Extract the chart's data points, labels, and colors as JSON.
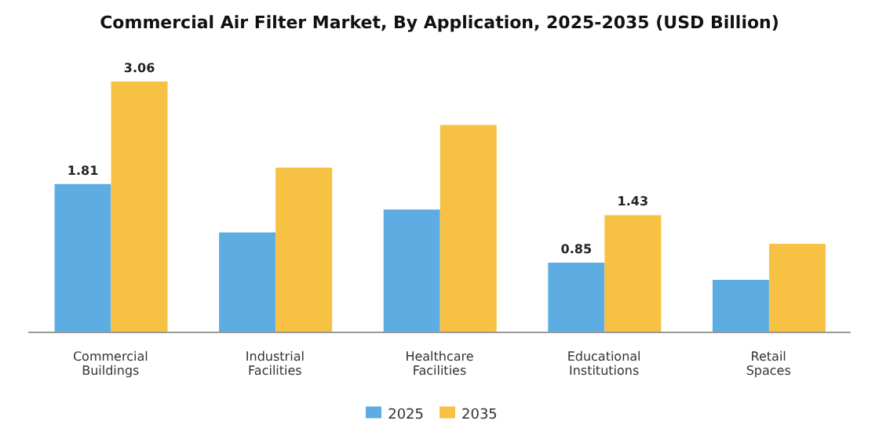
{
  "chart_data": {
    "type": "bar",
    "title": "Commercial Air Filter Market, By Application, 2025-2035 (USD Billion)",
    "categories": [
      "Commercial Buildings",
      "Industrial Facilities",
      "Healthcare Facilities",
      "Educational Institutions",
      "Retail Spaces"
    ],
    "series": [
      {
        "name": "2025",
        "color": "#5dade2",
        "values": [
          1.81,
          1.22,
          1.5,
          0.85,
          0.64
        ],
        "value_labels": [
          "1.81",
          null,
          null,
          "0.85",
          null
        ]
      },
      {
        "name": "2035",
        "color": "#f7c244",
        "values": [
          3.06,
          2.01,
          2.53,
          1.43,
          1.08
        ],
        "value_labels": [
          "3.06",
          null,
          null,
          "1.43",
          null
        ]
      }
    ],
    "grid": false,
    "legend": "bottom"
  }
}
